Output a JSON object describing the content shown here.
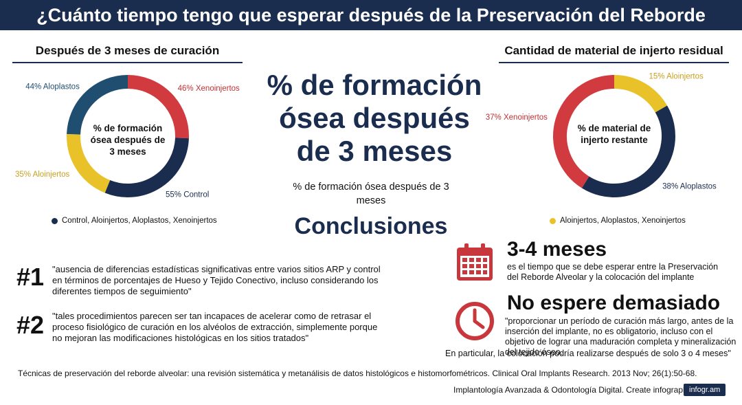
{
  "header": {
    "title": "¿Cuánto tiempo tengo que esperar después de la Preservación del Reborde Alveolar?"
  },
  "left_section": {
    "title": "Después de 3 meses de curación",
    "center_text": "% de formación ósea después de 3 meses",
    "legend": "Control, Aloinjertos, Aloplastos, Xenoinjertos",
    "legend_color": "#1b2d4f"
  },
  "right_section": {
    "title": "Cantidad de material de injerto residual",
    "center_text": "% de material de injerto restante",
    "legend": "Aloinjertos, Aloplastos, Xenoinjertos",
    "legend_color": "#e9c22a"
  },
  "center": {
    "big_title": "% de formación ósea después de 3 meses",
    "subtitle": "% de formación ósea después de 3 meses",
    "conclusions_heading": "Conclusiones"
  },
  "conclusions": [
    {
      "number": "#1",
      "text": "\"ausencia de diferencias estadísticas significativas entre varios sitios ARP y control en términos de porcentajes de Hueso y Tejido Conectivo, incluso considerando los diferentes tiempos de seguimiento\""
    },
    {
      "number": "#2",
      "text": "\"tales procedimientos parecen ser tan incapaces de acelerar como de retrasar el proceso fisiológico de curación en los alvéolos de extracción, simplemente porque no mejoran las modificaciones histológicas en los sitios tratados\""
    }
  ],
  "info_blocks": {
    "wait": {
      "heading": "3-4 meses",
      "text": "es el tiempo que se debe esperar entre la Preservación del Reborde Alveolar y la colocación del implante",
      "icon": "calendar-icon",
      "icon_color": "#c8373b"
    },
    "dont_wait": {
      "heading": "No espere demasiado",
      "text": "\"proporcionar un período de curación más largo, antes de la inserción del implante, no es obligatorio, incluso con el objetivo de lograr una maduración completa y mineralización del tejido óseo.",
      "text_cont": "En particular, la colocación podría realizarse después de solo 3 o 4 meses\"",
      "icon": "clock-icon",
      "icon_color": "#c8373b"
    }
  },
  "citation": "Técnicas de preservación del reborde alveolar: una revisión sistemática y metanálisis de datos histológicos e histomorfométricos. Clinical Oral Implants Research. 2013 Nov; 26(1):50-68.",
  "footer": {
    "text": "Implantología Avanzada & Odontología Digital. Create infographics",
    "brand": "infogr.am"
  },
  "chart_data": [
    {
      "type": "pie",
      "title": "Después de 3 meses de curación",
      "labels": [
        "46% Xenoinjertos",
        "55% Control",
        "35% Aloinjertos",
        "44% Aloplastos"
      ],
      "categories": [
        "Xenoinjertos",
        "Control",
        "Aloinjertos",
        "Aloplastos"
      ],
      "values": [
        46,
        55,
        35,
        44
      ],
      "colors": [
        "#d13a3f",
        "#1b2d4f",
        "#e9c22a",
        "#1f4e70"
      ],
      "label_colors": [
        "#c03035",
        "#1b2d4f",
        "#c9a020",
        "#1f4e70"
      ],
      "legend": "bottom"
    },
    {
      "type": "pie",
      "title": "Cantidad de material de injerto residual",
      "labels": [
        "15% Aloinjertos",
        "38% Aloplastos",
        "37% Xenoinjertos"
      ],
      "categories": [
        "Aloinjertos",
        "Aloplastos",
        "Xenoinjertos"
      ],
      "values": [
        15,
        38,
        37
      ],
      "colors": [
        "#e9c22a",
        "#1b2d4f",
        "#d13a3f"
      ],
      "label_colors": [
        "#c9a020",
        "#1b2d4f",
        "#c03035"
      ],
      "legend": "bottom"
    }
  ]
}
